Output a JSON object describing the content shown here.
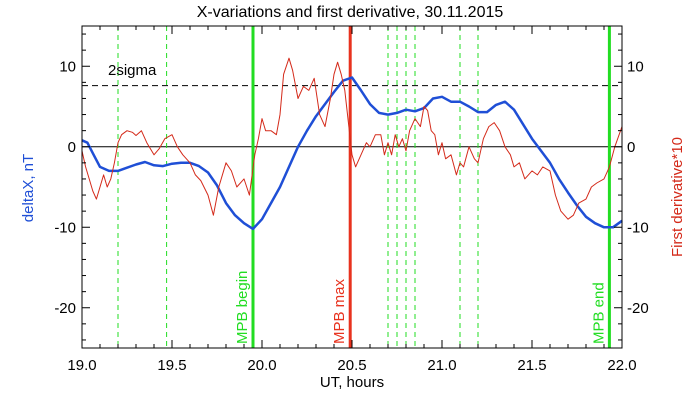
{
  "chart_data": {
    "type": "line",
    "title": "X-variations and first derivative, 30.11.2015",
    "xlabel": "UT, hours",
    "ylabel_left": "deltaX, nT",
    "ylabel_right": "First derivative*10",
    "xlim": [
      19.0,
      22.0
    ],
    "ylim": [
      -25,
      15
    ],
    "x_ticks": [
      "19.0",
      "19.5",
      "20.0",
      "20.5",
      "21.0",
      "21.5",
      "22.0"
    ],
    "y_ticks_left": [
      "-20",
      "-10",
      "0",
      "10"
    ],
    "y_ticks_right": [
      "-20",
      "-10",
      "0",
      "10"
    ],
    "colors": {
      "deltaX": "#1f4fd6",
      "derivative": "#d42a1a",
      "mpb": "#22dd22",
      "mpb_max": "#e8321e",
      "sigma": "#000000",
      "zero": "#000000"
    },
    "sigma_level": 7.6,
    "sigma_label": "2sigma",
    "mpb_begin": {
      "x": 19.95,
      "label": "MPB begin"
    },
    "mpb_max": {
      "x": 20.49,
      "label": "MPB max"
    },
    "mpb_end": {
      "x": 21.93,
      "label": "MPB end"
    },
    "dashed_markers": [
      19.2,
      19.47,
      20.7,
      20.75,
      20.8,
      20.85,
      21.1,
      21.2
    ],
    "series": [
      {
        "key": "deltaX",
        "x": [
          19.0,
          19.03,
          19.06,
          19.1,
          19.15,
          19.2,
          19.25,
          19.3,
          19.35,
          19.4,
          19.45,
          19.5,
          19.55,
          19.6,
          19.65,
          19.7,
          19.75,
          19.8,
          19.85,
          19.9,
          19.95,
          20.0,
          20.05,
          20.1,
          20.15,
          20.2,
          20.25,
          20.3,
          20.35,
          20.4,
          20.45,
          20.5,
          20.55,
          20.6,
          20.65,
          20.7,
          20.75,
          20.8,
          20.85,
          20.9,
          20.95,
          21.0,
          21.05,
          21.1,
          21.15,
          21.2,
          21.25,
          21.3,
          21.35,
          21.4,
          21.45,
          21.5,
          21.55,
          21.6,
          21.65,
          21.7,
          21.75,
          21.8,
          21.85,
          21.9,
          21.95,
          22.0
        ],
        "y": [
          0.8,
          0.5,
          -0.8,
          -2.5,
          -3.0,
          -3.0,
          -2.6,
          -2.2,
          -1.9,
          -2.3,
          -2.4,
          -2.1,
          -2.0,
          -2.0,
          -2.4,
          -3.2,
          -4.8,
          -7.0,
          -8.5,
          -9.5,
          -10.2,
          -9.0,
          -7.0,
          -5.0,
          -2.5,
          0.0,
          2.0,
          3.8,
          5.3,
          6.8,
          8.2,
          8.6,
          7.0,
          5.3,
          4.2,
          4.0,
          4.2,
          4.6,
          4.4,
          4.8,
          6.0,
          6.2,
          5.6,
          5.6,
          5.0,
          4.3,
          4.3,
          5.2,
          5.6,
          4.6,
          2.8,
          1.0,
          -0.5,
          -2.0,
          -4.0,
          -5.7,
          -7.3,
          -8.7,
          -9.5,
          -10.0,
          -10.0,
          -9.2
        ]
      },
      {
        "key": "derivative",
        "x": [
          19.0,
          19.02,
          19.04,
          19.06,
          19.08,
          19.1,
          19.12,
          19.14,
          19.16,
          19.18,
          19.2,
          19.22,
          19.25,
          19.28,
          19.3,
          19.33,
          19.36,
          19.4,
          19.43,
          19.46,
          19.5,
          19.53,
          19.56,
          19.6,
          19.63,
          19.66,
          19.7,
          19.73,
          19.76,
          19.8,
          19.83,
          19.86,
          19.9,
          19.93,
          19.96,
          19.98,
          20.0,
          20.02,
          20.05,
          20.08,
          20.1,
          20.12,
          20.15,
          20.17,
          20.2,
          20.23,
          20.26,
          20.29,
          20.32,
          20.35,
          20.38,
          20.4,
          20.42,
          20.44,
          20.46,
          20.48,
          20.5,
          20.52,
          20.55,
          20.58,
          20.6,
          20.63,
          20.66,
          20.68,
          20.7,
          20.72,
          20.74,
          20.76,
          20.78,
          20.8,
          20.82,
          20.85,
          20.88,
          20.9,
          20.92,
          20.94,
          20.96,
          20.98,
          21.0,
          21.02,
          21.05,
          21.08,
          21.1,
          21.12,
          21.15,
          21.18,
          21.2,
          21.23,
          21.26,
          21.29,
          21.32,
          21.35,
          21.38,
          21.4,
          21.43,
          21.46,
          21.5,
          21.53,
          21.56,
          21.6,
          21.63,
          21.66,
          21.7,
          21.73,
          21.76,
          21.8,
          21.83,
          21.86,
          21.9,
          21.93,
          21.96,
          22.0
        ],
        "y": [
          -0.5,
          -2.5,
          -4.0,
          -5.5,
          -6.5,
          -5.0,
          -3.5,
          -5.0,
          -4.0,
          -2.0,
          0.5,
          1.5,
          2.0,
          1.8,
          1.4,
          2.0,
          0.5,
          -1.0,
          -0.2,
          1.0,
          1.5,
          0.0,
          -1.0,
          -2.0,
          -3.5,
          -4.2,
          -6.0,
          -8.5,
          -5.0,
          -2.0,
          -3.0,
          -5.0,
          -4.0,
          -6.0,
          -1.0,
          1.0,
          3.5,
          2.0,
          2.0,
          1.5,
          4.0,
          9.0,
          11.0,
          9.5,
          6.0,
          7.5,
          7.0,
          8.5,
          4.0,
          2.5,
          6.0,
          9.0,
          10.5,
          9.0,
          7.0,
          3.0,
          -1.0,
          -2.5,
          -1.0,
          0.5,
          0.0,
          1.5,
          1.5,
          -1.0,
          0.5,
          -1.0,
          1.5,
          0.0,
          1.0,
          -0.5,
          2.0,
          3.5,
          2.5,
          5.0,
          4.5,
          2.0,
          1.5,
          -1.0,
          0.5,
          -1.5,
          -1.0,
          -3.5,
          -2.0,
          -2.5,
          0.0,
          -1.5,
          -2.0,
          1.0,
          2.5,
          3.0,
          2.0,
          0.0,
          -1.0,
          -2.5,
          -2.0,
          -4.0,
          -3.0,
          -3.5,
          -2.5,
          -3.0,
          -6.0,
          -8.0,
          -9.0,
          -8.5,
          -7.0,
          -6.5,
          -5.0,
          -4.5,
          -4.0,
          -2.5,
          0.0,
          2.5
        ]
      }
    ]
  }
}
